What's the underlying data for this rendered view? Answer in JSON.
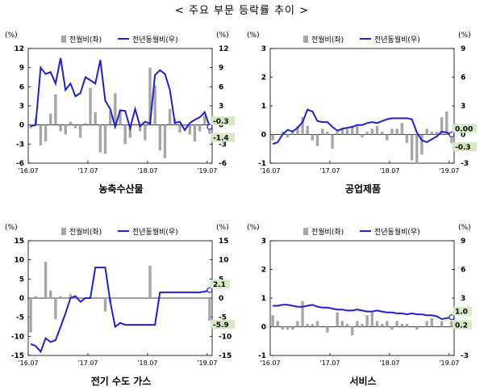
{
  "page": {
    "title": "< 주요 부문 등락률 추이 >"
  },
  "legend_labels": {
    "bar": "전월비(좌)",
    "line": "전년동월비(우)"
  },
  "colors": {
    "bar": "#a6a6a6",
    "line": "#1f1fd6",
    "label_box": "#d8e8c4"
  },
  "chart_data": [
    {
      "type": "bar",
      "title": "농축수산물",
      "unit_left": "(%)",
      "unit_right": "(%)",
      "left_ticks": [
        "12",
        "9",
        "6",
        "3",
        "0",
        "-3",
        "-6"
      ],
      "right_ticks": [
        "12",
        "9",
        "6",
        "3",
        "0",
        "-3",
        "-6"
      ],
      "left_range": [
        -6,
        12
      ],
      "right_range": [
        -6,
        12
      ],
      "x_ticks": [
        "'16.07",
        "'17.07",
        "'18.07",
        "'19.07"
      ],
      "x_tick_index": [
        0,
        12,
        24,
        36
      ],
      "series": [
        {
          "name": "전월비(좌)",
          "kind": "bar",
          "values": [
            -0.5,
            1.0,
            -3.2,
            -2.6,
            1.8,
            4.8,
            -1.0,
            -1.5,
            0.5,
            -0.5,
            -2.0,
            0.3,
            5.8,
            2.0,
            -4.3,
            -4.5,
            2.2,
            5.0,
            2.4,
            -3.0,
            -2.0,
            0.2,
            -1.0,
            -2.4,
            9.0,
            6.2,
            -4.0,
            -5.2,
            2.5,
            1.0,
            -1.2,
            -0.2,
            -1.5,
            -2.6,
            -1.0,
            1.5,
            -1.4
          ]
        },
        {
          "name": "전년동월비(우)",
          "kind": "line",
          "values": [
            -0.2,
            0.0,
            9.0,
            8.0,
            8.3,
            6.5,
            10.5,
            5.5,
            6.5,
            4.5,
            5.0,
            7.5,
            7.0,
            6.5,
            10.2,
            3.8,
            2.5,
            -0.3,
            2.3,
            2.2,
            -0.5,
            2.5,
            -0.2,
            0.5,
            0.2,
            7.8,
            8.6,
            8.0,
            5.5,
            0.3,
            0.5,
            -0.8,
            0.3,
            0.8,
            1.2,
            2.0,
            -0.3
          ]
        }
      ],
      "value_labels": [
        "-0.3",
        "-1.4"
      ]
    },
    {
      "type": "bar",
      "title": "공업제품",
      "unit_left": "(%)",
      "unit_right": "(%)",
      "left_ticks": [
        "3",
        "2",
        "1",
        "0",
        "-1"
      ],
      "right_ticks": [
        "9",
        "6",
        "3",
        "0",
        "-3"
      ],
      "left_range": [
        -1,
        3
      ],
      "right_range": [
        -3,
        9
      ],
      "x_ticks": [
        "'16.07",
        "'17.07",
        "'18.07",
        "'19.07"
      ],
      "x_tick_index": [
        0,
        12,
        24,
        36
      ],
      "series": [
        {
          "name": "전월비(좌)",
          "kind": "bar",
          "values": [
            -0.2,
            0.0,
            0.1,
            -0.1,
            0.1,
            0.3,
            0.6,
            0.3,
            -0.2,
            -0.4,
            0.2,
            0.1,
            -0.5,
            0.1,
            0.2,
            0.2,
            0.3,
            0.3,
            -0.1,
            0.1,
            0.2,
            0.3,
            0.1,
            -0.2,
            0.2,
            0.2,
            0.4,
            -0.3,
            -0.9,
            -1.0,
            -0.7,
            0.2,
            0.1,
            0.1,
            0.6,
            0.8,
            -0.3
          ]
        },
        {
          "name": "전년동월비(우)",
          "kind": "line",
          "values": [
            -1.0,
            -0.8,
            0.0,
            0.5,
            0.3,
            0.7,
            1.3,
            2.6,
            2.4,
            1.4,
            1.3,
            1.3,
            0.8,
            0.4,
            0.6,
            0.7,
            0.8,
            1.0,
            1.0,
            1.2,
            1.3,
            1.2,
            1.4,
            1.6,
            1.7,
            1.7,
            1.7,
            1.7,
            1.6,
            0.2,
            -0.6,
            -0.8,
            -0.5,
            -0.2,
            0.3,
            0.2,
            0.0
          ]
        },
        {
          "name": "",
          "kind": "none",
          "values": []
        }
      ],
      "value_labels": [
        "0.00",
        "-0.3"
      ]
    },
    {
      "type": "bar",
      "title": "전기 수도 가스",
      "unit_left": "(%)",
      "unit_right": "(%)",
      "left_ticks": [
        "15",
        "10",
        "5",
        "0",
        "-5",
        "-10",
        "-15"
      ],
      "right_ticks": [
        "15",
        "10",
        "5",
        "0",
        "-5",
        "-10",
        "-15"
      ],
      "left_range": [
        -15,
        15
      ],
      "right_range": [
        -15,
        15
      ],
      "x_ticks": [
        "'16.07",
        "'17.07",
        "'18.07",
        "'19.07"
      ],
      "x_tick_index": [
        0,
        12,
        24,
        36
      ],
      "series": [
        {
          "name": "전월비(좌)",
          "kind": "bar",
          "values": [
            -9.0,
            0.5,
            0.0,
            9.5,
            2.0,
            -5.5,
            0.5,
            0.0,
            1.0,
            0.5,
            0.0,
            0.0,
            0.0,
            0.0,
            0.0,
            -3.5,
            -1.0,
            0.0,
            0.0,
            0.0,
            0.0,
            0.0,
            0.0,
            0.0,
            8.5,
            0.0,
            0.0,
            0.0,
            0.0,
            0.0,
            0.0,
            0.0,
            0.0,
            0.0,
            0.0,
            0.0,
            -5.9
          ]
        },
        {
          "name": "전년동월비(우)",
          "kind": "line",
          "values": [
            -12.0,
            -12.5,
            -14.0,
            -10.5,
            -11.5,
            -11.0,
            -7.5,
            -4.0,
            0.0,
            0.5,
            -1.0,
            0.0,
            0.0,
            8.0,
            8.0,
            8.0,
            -1.0,
            -7.5,
            -6.5,
            -7.0,
            -7.0,
            -7.0,
            -7.0,
            -7.0,
            -7.0,
            -7.0,
            1.5,
            1.5,
            1.5,
            1.5,
            1.5,
            1.5,
            1.5,
            1.5,
            1.5,
            1.7,
            2.1
          ]
        }
      ],
      "value_labels": [
        "2.1",
        "-5.9"
      ]
    },
    {
      "type": "bar",
      "title": "서비스",
      "unit_left": "(%)",
      "unit_right": "(%)",
      "left_ticks": [
        "3",
        "2",
        "1",
        "0",
        "-1"
      ],
      "right_ticks": [
        "9",
        "6",
        "3",
        "0",
        "-3"
      ],
      "left_range": [
        -1,
        3
      ],
      "right_range": [
        -3,
        9
      ],
      "x_ticks": [
        "'16.07",
        "'17.07",
        "'18.07",
        "'19.07"
      ],
      "x_tick_index": [
        0,
        12,
        24,
        36
      ],
      "series": [
        {
          "name": "전월비(좌)",
          "kind": "bar",
          "values": [
            0.4,
            0.2,
            -0.1,
            -0.1,
            -0.1,
            0.2,
            0.9,
            0.1,
            0.1,
            0.2,
            0.0,
            -0.2,
            0.0,
            0.5,
            0.2,
            0.1,
            -0.3,
            0.2,
            0.1,
            0.4,
            0.5,
            0.2,
            0.1,
            0.2,
            -0.1,
            0.2,
            0.1,
            0.1,
            0.0,
            -0.1,
            0.0,
            0.2,
            0.3,
            0.0,
            0.2,
            0.0,
            0.2
          ]
        },
        {
          "name": "전년동월비(우)",
          "kind": "line",
          "values": [
            2.2,
            2.2,
            2.3,
            2.3,
            2.2,
            2.1,
            2.1,
            2.2,
            2.3,
            2.1,
            2.0,
            2.0,
            1.9,
            1.8,
            1.8,
            1.7,
            1.7,
            1.8,
            1.7,
            1.6,
            1.6,
            1.7,
            1.6,
            1.5,
            1.5,
            1.4,
            1.4,
            1.3,
            1.4,
            1.3,
            1.3,
            1.2,
            1.2,
            1.1,
            0.8,
            0.9,
            1.0
          ]
        }
      ],
      "value_labels": [
        "1.0",
        "0.2"
      ]
    }
  ]
}
